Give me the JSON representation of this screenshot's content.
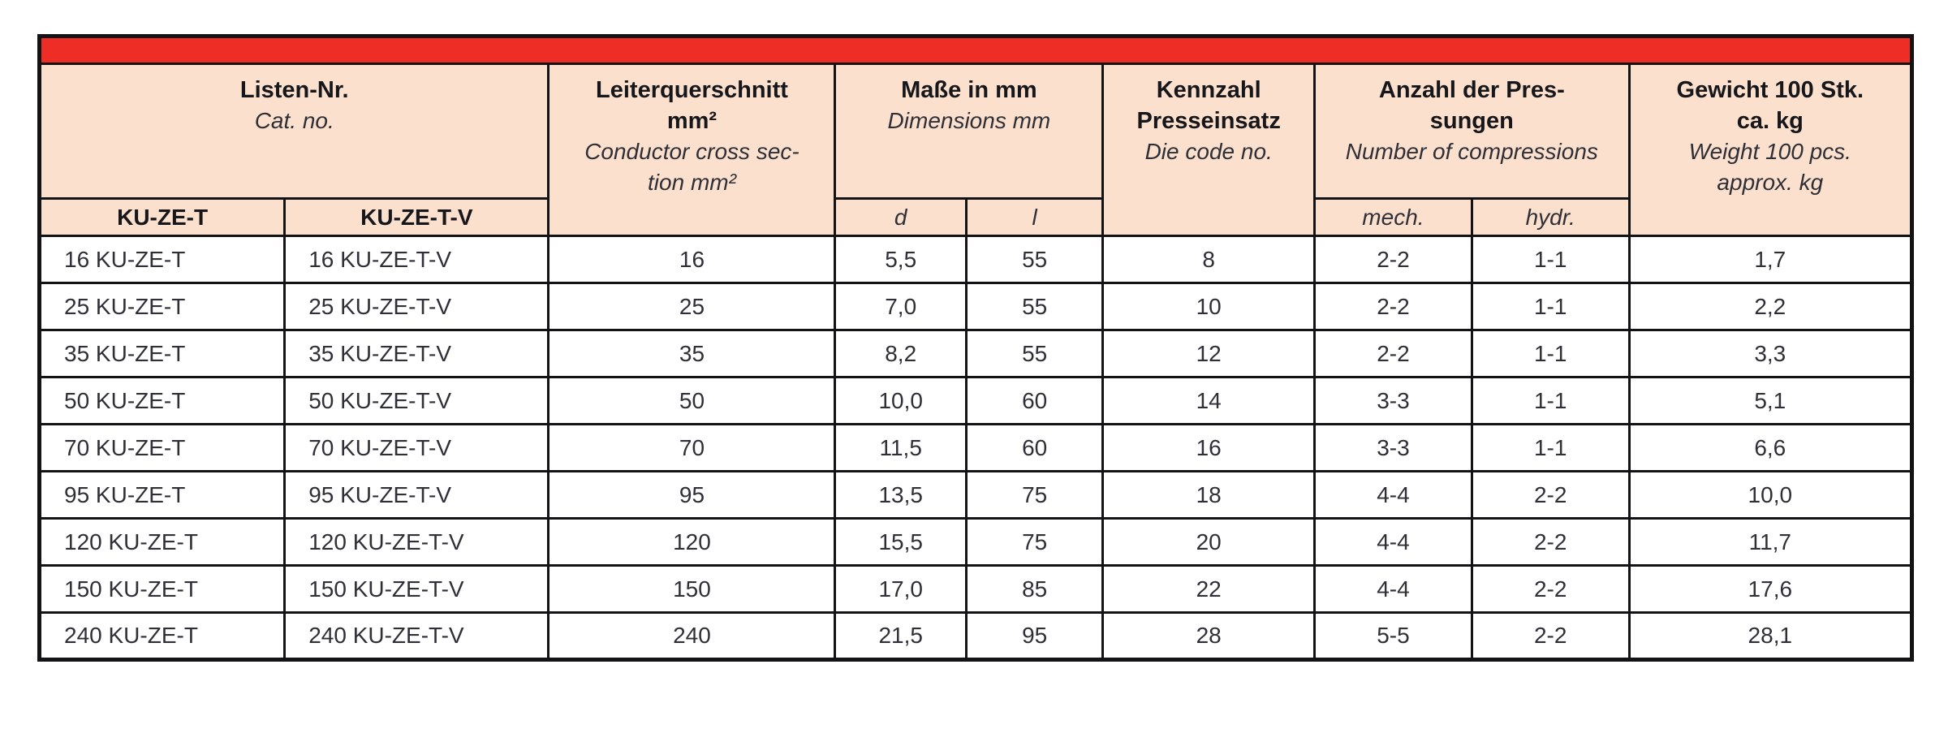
{
  "table": {
    "colors": {
      "accent": "#ee2d26",
      "header_bg": "#fbe0cd",
      "border": "#131316"
    },
    "header": {
      "listen": {
        "de1": "Listen-Nr.",
        "en1": "Cat. no."
      },
      "leiter": {
        "de1": "Leiterquerschnitt",
        "de2": "mm²",
        "en1": "Conductor cross sec-",
        "en2": "tion mm²"
      },
      "masse": {
        "de1": "Maße in mm",
        "en1": "Dimensions mm"
      },
      "kennzahl": {
        "de1": "Kennzahl",
        "de2": "Presseinsatz",
        "en1": "Die code no."
      },
      "anzahl": {
        "de1": "Anzahl der Pres-",
        "de2": "sungen",
        "en1": "Number of compressions"
      },
      "gewicht": {
        "de1": "Gewicht 100 Stk.",
        "de2": "ca. kg",
        "en1": "Weight 100 pcs.",
        "en2": "approx. kg"
      },
      "subs": {
        "col1": "KU-ZE-T",
        "col2": "KU-ZE-T-V",
        "d": "d",
        "l": "l",
        "mech": "mech.",
        "hydr": "hydr."
      }
    },
    "column_names": [
      "ku-ze-t",
      "ku-ze-t-v",
      "cross-section",
      "dim-d",
      "dim-l",
      "die-code",
      "compressions-mech",
      "compressions-hydr",
      "weight"
    ],
    "rows": [
      [
        "16 KU-ZE-T",
        "16 KU-ZE-T-V",
        "16",
        "5,5",
        "55",
        "8",
        "2-2",
        "1-1",
        "1,7"
      ],
      [
        "25 KU-ZE-T",
        "25 KU-ZE-T-V",
        "25",
        "7,0",
        "55",
        "10",
        "2-2",
        "1-1",
        "2,2"
      ],
      [
        "35 KU-ZE-T",
        "35 KU-ZE-T-V",
        "35",
        "8,2",
        "55",
        "12",
        "2-2",
        "1-1",
        "3,3"
      ],
      [
        "50 KU-ZE-T",
        "50 KU-ZE-T-V",
        "50",
        "10,0",
        "60",
        "14",
        "3-3",
        "1-1",
        "5,1"
      ],
      [
        "70 KU-ZE-T",
        "70 KU-ZE-T-V",
        "70",
        "11,5",
        "60",
        "16",
        "3-3",
        "1-1",
        "6,6"
      ],
      [
        "95 KU-ZE-T",
        "95 KU-ZE-T-V",
        "95",
        "13,5",
        "75",
        "18",
        "4-4",
        "2-2",
        "10,0"
      ],
      [
        "120 KU-ZE-T",
        "120 KU-ZE-T-V",
        "120",
        "15,5",
        "75",
        "20",
        "4-4",
        "2-2",
        "11,7"
      ],
      [
        "150 KU-ZE-T",
        "150 KU-ZE-T-V",
        "150",
        "17,0",
        "85",
        "22",
        "4-4",
        "2-2",
        "17,6"
      ],
      [
        "240 KU-ZE-T",
        "240 KU-ZE-T-V",
        "240",
        "21,5",
        "95",
        "28",
        "5-5",
        "2-2",
        "28,1"
      ]
    ]
  }
}
